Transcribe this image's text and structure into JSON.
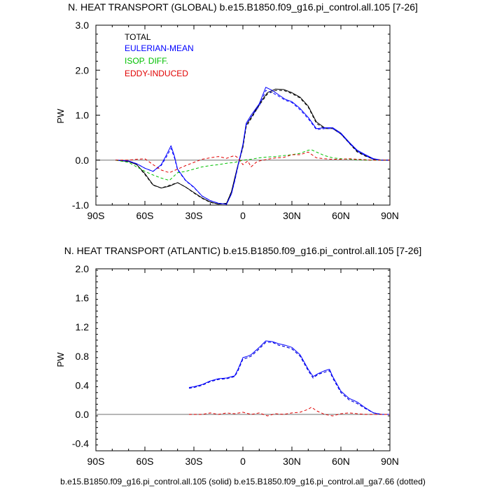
{
  "footer": "b.e15.B1850.f09_g16.pi_control.all.105 (solid) b.e15.B1850.f09_g16.pi_control.all_ga7.66 (dotted)",
  "chart_data": [
    {
      "type": "line",
      "title": "N. HEAT TRANSPORT (GLOBAL) b.e15.B1850.f09_g16.pi_control.all.105 [7-26]",
      "ylabel": "PW",
      "xlim": [
        -90,
        90
      ],
      "ylim": [
        -1.0,
        3.0
      ],
      "xticks": [
        -90,
        -60,
        -30,
        0,
        30,
        60,
        90
      ],
      "xtick_labels": [
        "90S",
        "60S",
        "30S",
        "0",
        "30N",
        "60N",
        "90N"
      ],
      "yticks": [
        -1.0,
        0.0,
        1.0,
        2.0,
        3.0
      ],
      "ytick_labels": [
        "-1.0",
        "0.0",
        "1.0",
        "2.0",
        "3.0"
      ],
      "legend": [
        "TOTAL",
        "EULERIAN-MEAN",
        "ISOP. DIFF.",
        "EDDY-INDUCED"
      ],
      "colors": {
        "TOTAL": "#000000",
        "EULERIAN-MEAN": "#0000ff",
        "ISOP. DIFF.": "#00c000",
        "EDDY-INDUCED": "#e00000"
      },
      "series": [
        {
          "name": "TOTAL",
          "style": "solid",
          "x": [
            -78,
            -70,
            -65,
            -60,
            -55,
            -50,
            -45,
            -40,
            -35,
            -30,
            -25,
            -20,
            -15,
            -10,
            -7,
            -5,
            -3,
            0,
            2,
            5,
            10,
            15,
            20,
            25,
            30,
            35,
            40,
            45,
            50,
            55,
            60,
            65,
            70,
            75,
            80,
            85,
            90
          ],
          "y": [
            0,
            -0.03,
            -0.1,
            -0.3,
            -0.55,
            -0.62,
            -0.58,
            -0.5,
            -0.6,
            -0.72,
            -0.84,
            -0.93,
            -0.98,
            -0.96,
            -0.7,
            -0.4,
            -0.1,
            0.3,
            0.78,
            0.95,
            1.25,
            1.5,
            1.58,
            1.57,
            1.5,
            1.4,
            1.2,
            0.85,
            0.72,
            0.72,
            0.6,
            0.4,
            0.2,
            0.1,
            0.02,
            0,
            0
          ]
        },
        {
          "name": "TOTAL",
          "style": "dashed",
          "x": [
            -78,
            -70,
            -65,
            -60,
            -55,
            -50,
            -45,
            -40,
            -35,
            -30,
            -25,
            -20,
            -15,
            -10,
            -7,
            -5,
            -3,
            0,
            2,
            5,
            10,
            15,
            20,
            25,
            30,
            35,
            40,
            45,
            50,
            55,
            60,
            65,
            70,
            75,
            80,
            85,
            90
          ],
          "y": [
            0,
            -0.03,
            -0.1,
            -0.32,
            -0.56,
            -0.62,
            -0.56,
            -0.5,
            -0.6,
            -0.73,
            -0.85,
            -0.94,
            -0.98,
            -0.96,
            -0.7,
            -0.42,
            -0.12,
            0.28,
            0.74,
            0.92,
            1.22,
            1.47,
            1.55,
            1.55,
            1.48,
            1.38,
            1.18,
            0.82,
            0.7,
            0.7,
            0.58,
            0.38,
            0.18,
            0.09,
            0.02,
            0,
            0
          ]
        },
        {
          "name": "EULERIAN-MEAN",
          "style": "solid",
          "x": [
            -78,
            -70,
            -65,
            -60,
            -55,
            -50,
            -47,
            -44,
            -42,
            -40,
            -35,
            -30,
            -25,
            -20,
            -15,
            -10,
            -7,
            -5,
            -3,
            0,
            2,
            5,
            10,
            14,
            18,
            22,
            26,
            30,
            35,
            40,
            45,
            50,
            55,
            60,
            65,
            70,
            75,
            80,
            85,
            90
          ],
          "y": [
            0,
            -0.02,
            -0.08,
            -0.18,
            -0.25,
            -0.1,
            0.1,
            0.32,
            0.1,
            -0.2,
            -0.45,
            -0.6,
            -0.8,
            -0.9,
            -0.96,
            -0.98,
            -0.75,
            -0.45,
            -0.12,
            0.35,
            0.82,
            1.0,
            1.25,
            1.62,
            1.55,
            1.45,
            1.35,
            1.3,
            1.15,
            0.95,
            0.7,
            0.72,
            0.72,
            0.6,
            0.4,
            0.22,
            0.12,
            0.03,
            0,
            0
          ]
        },
        {
          "name": "EULERIAN-MEAN",
          "style": "dashed",
          "x": [
            -78,
            -70,
            -65,
            -60,
            -55,
            -50,
            -47,
            -44,
            -42,
            -40,
            -35,
            -30,
            -25,
            -20,
            -15,
            -10,
            -7,
            -5,
            -3,
            0,
            2,
            5,
            10,
            14,
            18,
            22,
            26,
            30,
            35,
            40,
            45,
            50,
            55,
            60,
            65,
            70,
            75,
            80,
            85,
            90
          ],
          "y": [
            0,
            -0.02,
            -0.08,
            -0.18,
            -0.25,
            -0.12,
            0.06,
            0.26,
            0.06,
            -0.22,
            -0.46,
            -0.61,
            -0.8,
            -0.9,
            -0.96,
            -0.98,
            -0.75,
            -0.47,
            -0.14,
            0.32,
            0.78,
            0.96,
            1.2,
            1.55,
            1.5,
            1.42,
            1.33,
            1.28,
            1.12,
            0.92,
            0.68,
            0.7,
            0.7,
            0.58,
            0.38,
            0.2,
            0.1,
            0.02,
            0,
            0
          ]
        },
        {
          "name": "ISOP. DIFF.",
          "style": "dashed",
          "x": [
            -78,
            -70,
            -65,
            -60,
            -55,
            -50,
            -45,
            -40,
            -35,
            -30,
            -25,
            -20,
            -15,
            -10,
            -5,
            0,
            5,
            10,
            15,
            20,
            25,
            30,
            35,
            40,
            42,
            45,
            50,
            55,
            60,
            65,
            70,
            75,
            80,
            85,
            90
          ],
          "y": [
            0,
            -0.05,
            -0.15,
            -0.25,
            -0.33,
            -0.4,
            -0.45,
            -0.28,
            -0.25,
            -0.2,
            -0.15,
            -0.12,
            -0.1,
            -0.07,
            -0.05,
            0.0,
            0.02,
            0.05,
            0.07,
            0.08,
            0.1,
            0.12,
            0.15,
            0.22,
            0.23,
            0.18,
            0.1,
            0.05,
            0.03,
            0.02,
            0.01,
            0,
            0,
            0,
            0
          ]
        },
        {
          "name": "EDDY-INDUCED",
          "style": "dashed",
          "x": [
            -78,
            -70,
            -65,
            -60,
            -55,
            -50,
            -45,
            -40,
            -35,
            -30,
            -25,
            -20,
            -15,
            -10,
            -7,
            -5,
            -3,
            0,
            3,
            5,
            8,
            10,
            15,
            20,
            25,
            30,
            35,
            40,
            45,
            50,
            55,
            60,
            65,
            70,
            75,
            80,
            85,
            90
          ],
          "y": [
            0,
            0,
            0.02,
            0.03,
            -0.1,
            -0.22,
            -0.28,
            -0.2,
            -0.12,
            -0.05,
            0.02,
            0.05,
            0.08,
            0.04,
            0.08,
            0.1,
            0.05,
            -0.1,
            -0.02,
            -0.15,
            -0.05,
            -0.02,
            0.02,
            0.05,
            0.06,
            0.12,
            0.12,
            0.18,
            0.05,
            0.03,
            0.02,
            0.02,
            0.03,
            0.02,
            0.01,
            0,
            0,
            0
          ]
        }
      ]
    },
    {
      "type": "line",
      "title": "N. HEAT TRANSPORT (ATLANTIC) b.e15.B1850.f09_g16.pi_control.all.105 [7-26]",
      "ylabel": "PW",
      "xlim": [
        -90,
        90
      ],
      "ylim": [
        -0.5,
        2.0
      ],
      "xticks": [
        -90,
        -60,
        -30,
        0,
        30,
        60,
        90
      ],
      "xtick_labels": [
        "90S",
        "60S",
        "30S",
        "0",
        "30N",
        "60N",
        "90N"
      ],
      "yticks": [
        -0.4,
        0.0,
        0.4,
        0.8,
        1.2,
        1.6,
        2.0
      ],
      "ytick_labels": [
        "-0.4",
        "0.0",
        "0.4",
        "0.8",
        "1.2",
        "1.6",
        "2.0"
      ],
      "colors": {
        "TOTAL": "#000000",
        "EULERIAN-MEAN": "#0000ff",
        "EDDY-INDUCED": "#e00000"
      },
      "series": [
        {
          "name": "TOTAL",
          "style": "dashed",
          "x": [
            -33,
            -30,
            -25,
            -20,
            -15,
            -10,
            -5,
            -3,
            0,
            3,
            5,
            10,
            14,
            18,
            22,
            26,
            30,
            35,
            40,
            43,
            46,
            50,
            53,
            55,
            60,
            65,
            70,
            75,
            80,
            85,
            90
          ],
          "y": [
            0.36,
            0.37,
            0.4,
            0.45,
            0.48,
            0.49,
            0.52,
            0.6,
            0.76,
            0.78,
            0.8,
            0.9,
            0.99,
            0.99,
            0.95,
            0.93,
            0.9,
            0.8,
            0.6,
            0.5,
            0.55,
            0.58,
            0.6,
            0.5,
            0.3,
            0.2,
            0.15,
            0.08,
            0.02,
            0,
            0
          ]
        },
        {
          "name": "EULERIAN-MEAN",
          "style": "solid",
          "x": [
            -33,
            -30,
            -25,
            -20,
            -15,
            -10,
            -5,
            -3,
            0,
            3,
            5,
            10,
            14,
            18,
            22,
            26,
            30,
            35,
            40,
            43,
            46,
            50,
            53,
            55,
            60,
            65,
            70,
            75,
            80,
            85,
            90
          ],
          "y": [
            0.37,
            0.38,
            0.41,
            0.46,
            0.49,
            0.5,
            0.53,
            0.62,
            0.78,
            0.8,
            0.82,
            0.92,
            1.01,
            1.0,
            0.97,
            0.95,
            0.92,
            0.82,
            0.62,
            0.52,
            0.56,
            0.6,
            0.62,
            0.52,
            0.32,
            0.22,
            0.17,
            0.09,
            0.02,
            0,
            0
          ]
        },
        {
          "name": "EULERIAN-MEAN",
          "style": "dashed",
          "x": [
            -33,
            -30,
            -25,
            -20,
            -15,
            -10,
            -5,
            -3,
            0,
            3,
            5,
            10,
            14,
            18,
            22,
            26,
            30,
            35,
            40,
            43,
            46,
            50,
            53,
            55,
            60,
            65,
            70,
            75,
            80,
            85,
            90
          ],
          "y": [
            0.36,
            0.37,
            0.4,
            0.45,
            0.48,
            0.49,
            0.52,
            0.6,
            0.76,
            0.78,
            0.8,
            0.9,
            0.99,
            0.99,
            0.95,
            0.93,
            0.9,
            0.8,
            0.6,
            0.5,
            0.55,
            0.58,
            0.6,
            0.5,
            0.3,
            0.2,
            0.15,
            0.08,
            0.02,
            0,
            0
          ]
        },
        {
          "name": "EDDY-INDUCED",
          "style": "dashed",
          "x": [
            -33,
            -25,
            -20,
            -15,
            -10,
            -5,
            0,
            5,
            10,
            15,
            20,
            25,
            30,
            35,
            40,
            42,
            45,
            50,
            55,
            60,
            65,
            70,
            75,
            80,
            85,
            90
          ],
          "y": [
            0,
            0,
            0.02,
            0,
            0.02,
            0.01,
            0.03,
            0,
            0.02,
            -0.02,
            0.01,
            0,
            0.02,
            0.03,
            0.07,
            0.1,
            0.05,
            0,
            -0.02,
            0.01,
            0.02,
            0.01,
            0,
            0,
            0,
            0
          ]
        }
      ]
    }
  ]
}
